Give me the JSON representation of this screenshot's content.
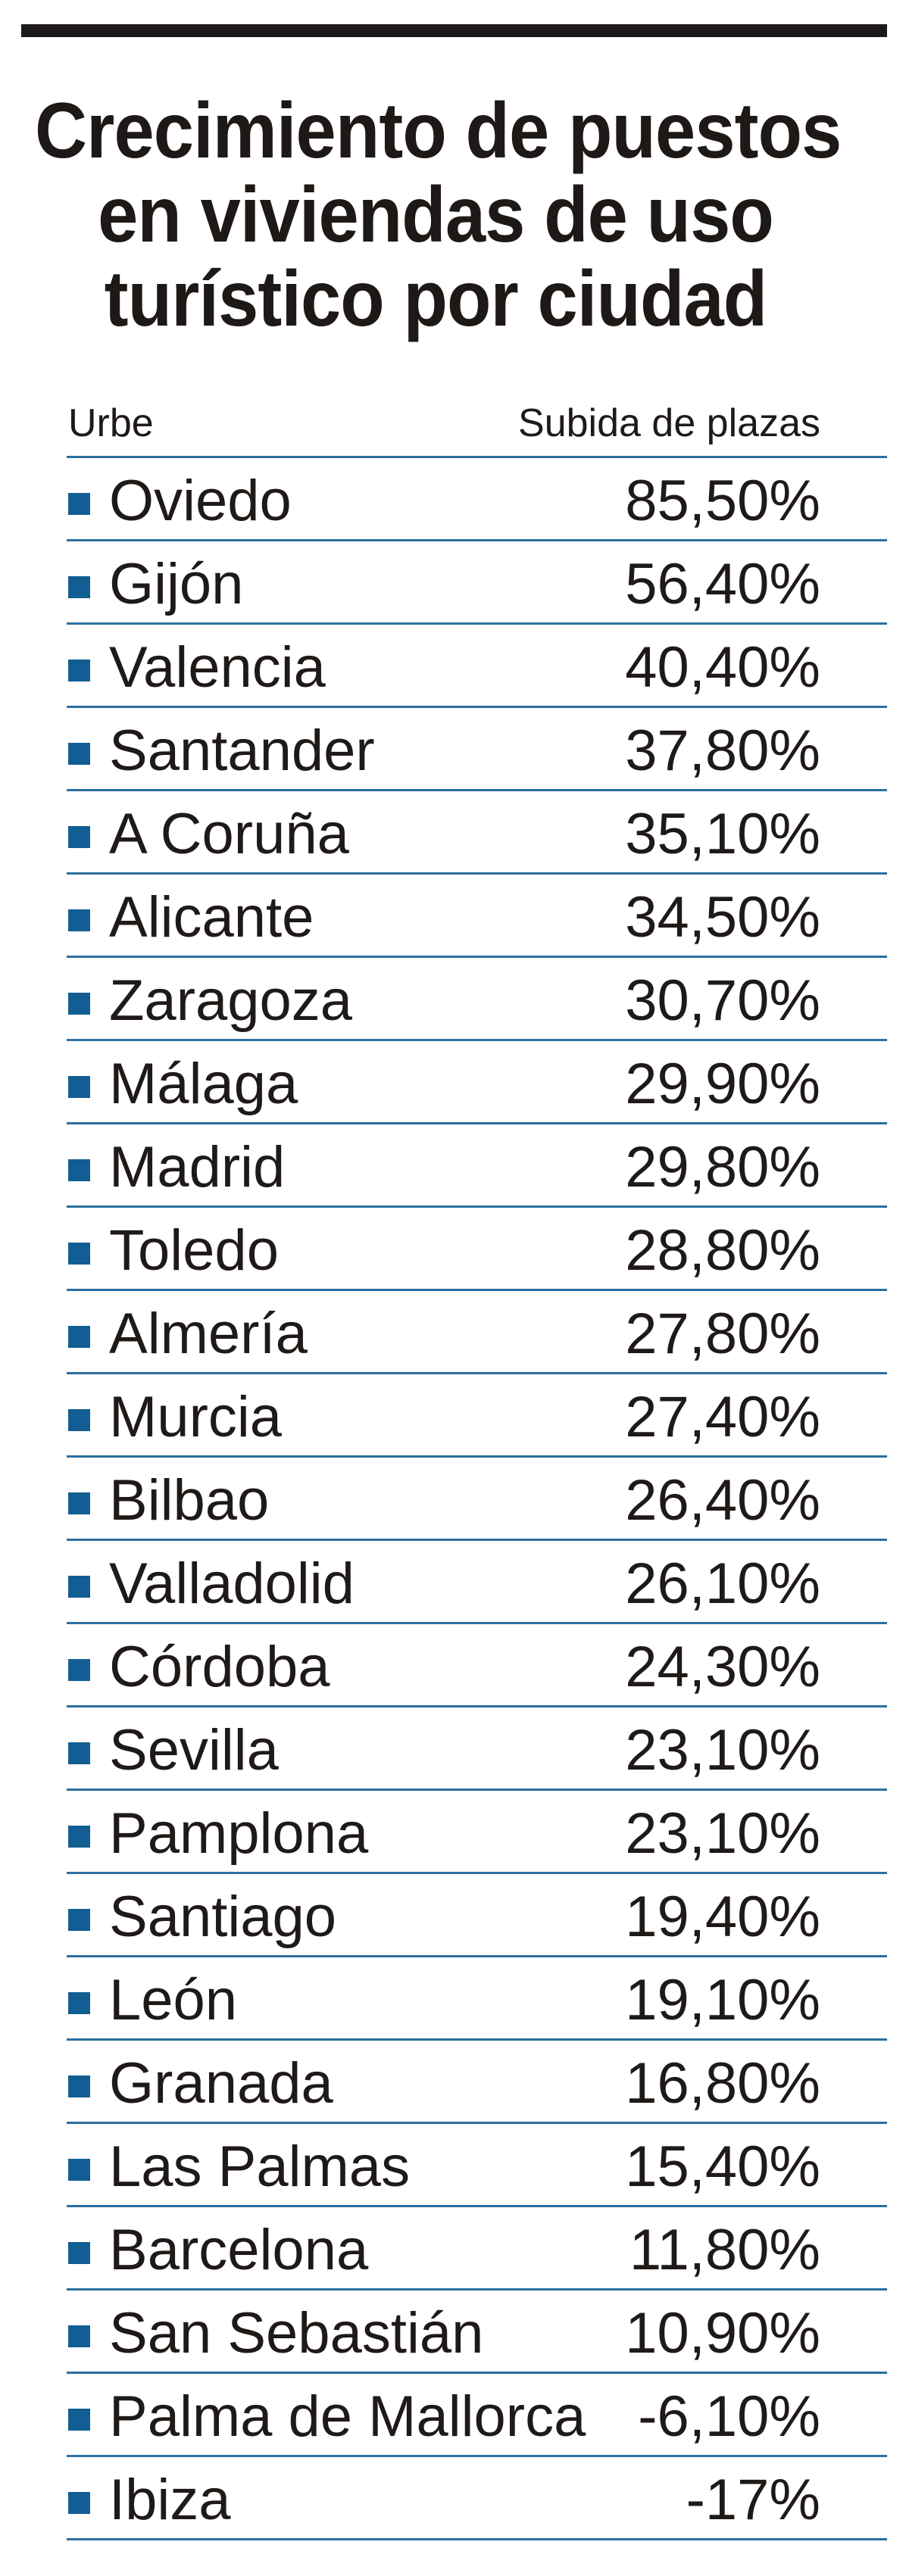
{
  "title": {
    "lines": [
      "Crecimiento de puestos",
      "en viviendas de uso",
      "turístico por ciudad"
    ]
  },
  "table": {
    "header": {
      "name": "Urbe",
      "value": "Subida de plazas"
    },
    "rows": [
      {
        "name": "Oviedo",
        "value": "85,50%"
      },
      {
        "name": "Gijón",
        "value": "56,40%"
      },
      {
        "name": "Valencia",
        "value": "40,40%"
      },
      {
        "name": "Santander",
        "value": "37,80%"
      },
      {
        "name": "A Coruña",
        "value": "35,10%"
      },
      {
        "name": "Alicante",
        "value": "34,50%"
      },
      {
        "name": "Zaragoza",
        "value": "30,70%"
      },
      {
        "name": "Málaga",
        "value": "29,90%"
      },
      {
        "name": "Madrid",
        "value": "29,80%"
      },
      {
        "name": "Toledo",
        "value": "28,80%"
      },
      {
        "name": "Almería",
        "value": "27,80%"
      },
      {
        "name": "Murcia",
        "value": "27,40%"
      },
      {
        "name": "Bilbao",
        "value": "26,40%"
      },
      {
        "name": "Valladolid",
        "value": "26,10%"
      },
      {
        "name": "Córdoba",
        "value": "24,30%"
      },
      {
        "name": "Sevilla",
        "value": "23,10%"
      },
      {
        "name": "Pamplona",
        "value": "23,10%"
      },
      {
        "name": "Santiago",
        "value": "19,40%"
      },
      {
        "name": "León",
        "value": "19,10%"
      },
      {
        "name": "Granada",
        "value": "16,80%"
      },
      {
        "name": "Las Palmas",
        "value": "15,40%"
      },
      {
        "name": "Barcelona",
        "value": "11,80%"
      },
      {
        "name": "San Sebastián",
        "value": "10,90%"
      },
      {
        "name": "Palma de Mallorca",
        "value": "-6,10%"
      },
      {
        "name": "Ibiza",
        "value": "-17%"
      }
    ]
  },
  "colors": {
    "bullet": "#125e93",
    "divider": "#2b6f9f",
    "text": "#1f1a17",
    "top_rule": "#1e1a19"
  },
  "chart_data": {
    "type": "table",
    "title": "Crecimiento de puestos en viviendas de uso turístico por ciudad",
    "columns": [
      "Urbe",
      "Subida de plazas"
    ],
    "categories": [
      "Oviedo",
      "Gijón",
      "Valencia",
      "Santander",
      "A Coruña",
      "Alicante",
      "Zaragoza",
      "Málaga",
      "Madrid",
      "Toledo",
      "Almería",
      "Murcia",
      "Bilbao",
      "Valladolid",
      "Córdoba",
      "Sevilla",
      "Pamplona",
      "Santiago",
      "León",
      "Granada",
      "Las Palmas",
      "Barcelona",
      "San Sebastián",
      "Palma de Mallorca",
      "Ibiza"
    ],
    "values": [
      85.5,
      56.4,
      40.4,
      37.8,
      35.1,
      34.5,
      30.7,
      29.9,
      29.8,
      28.8,
      27.8,
      27.4,
      26.4,
      26.1,
      24.3,
      23.1,
      23.1,
      19.4,
      19.1,
      16.8,
      15.4,
      11.8,
      10.9,
      -6.1,
      -17
    ],
    "unit": "%",
    "xlabel": "Urbe",
    "ylabel": "Subida de plazas"
  }
}
